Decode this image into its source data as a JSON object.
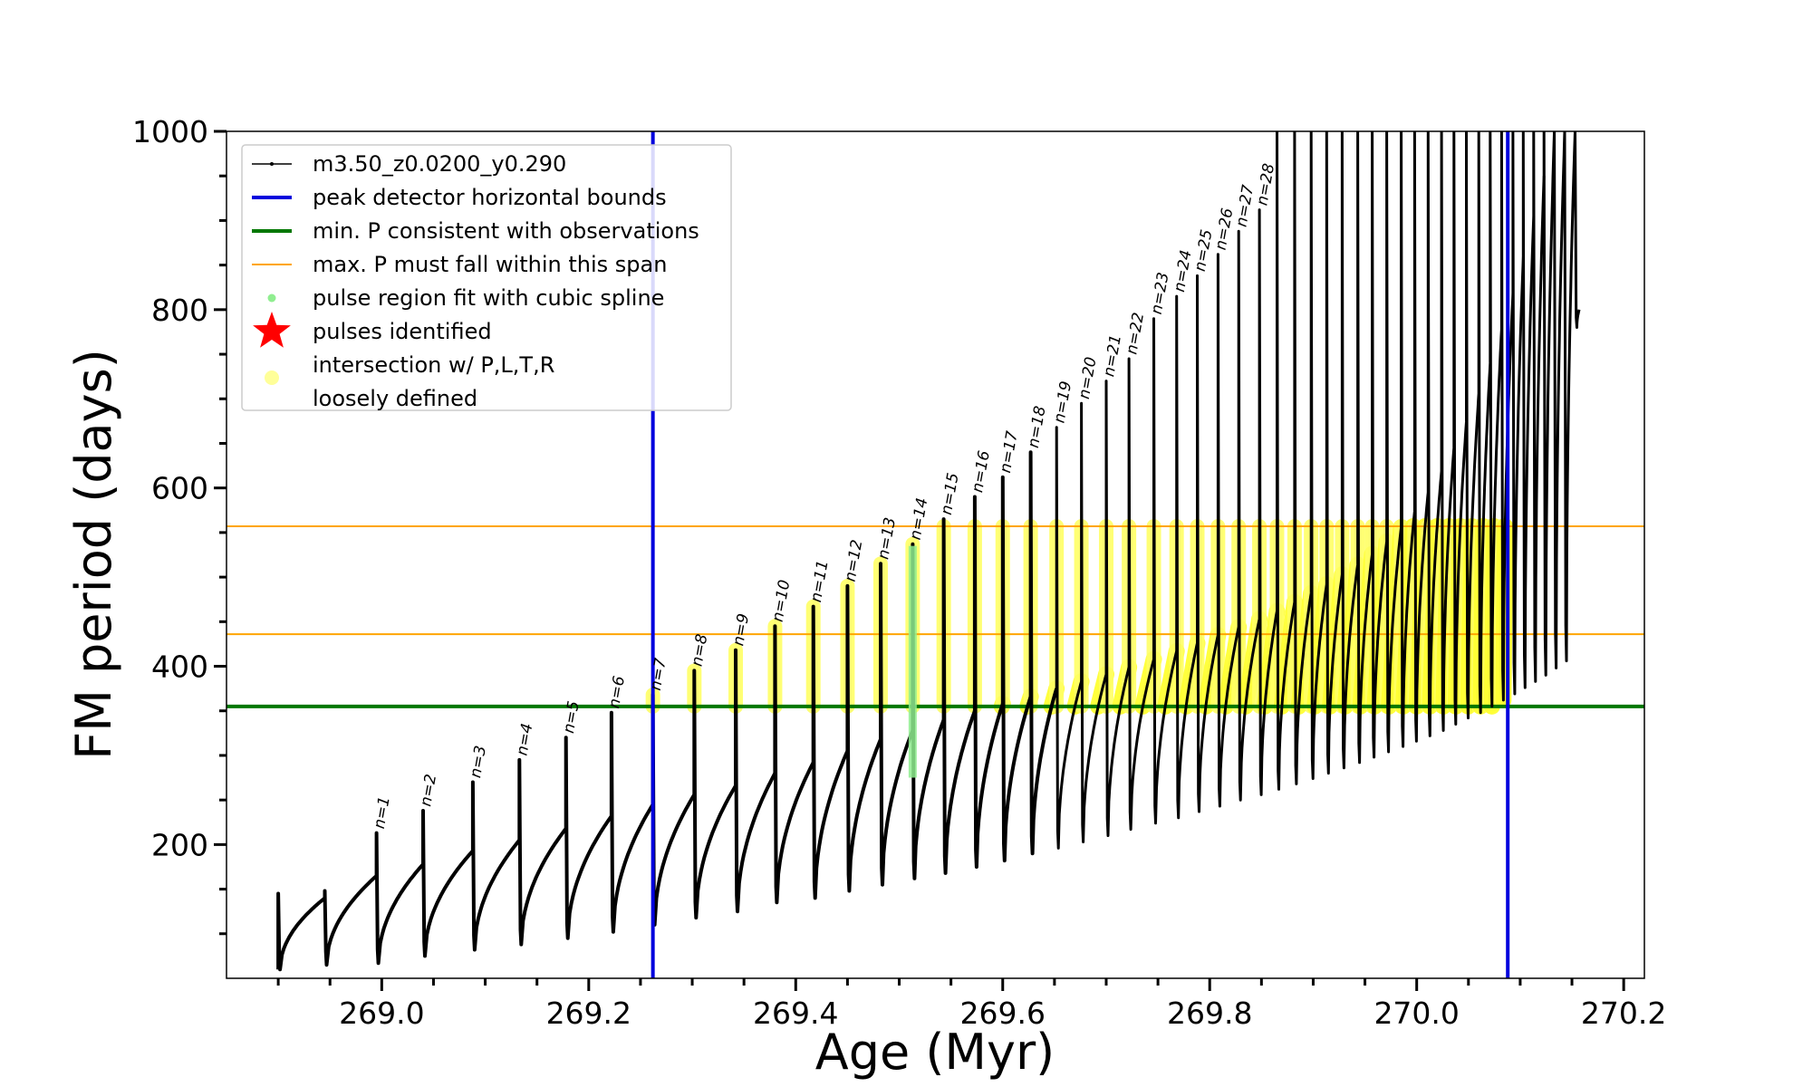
{
  "chart_data": {
    "type": "line",
    "title": "",
    "xlabel": "Age (Myr)",
    "ylabel": "FM period (days)",
    "xlim": [
      268.85,
      270.22
    ],
    "ylim": [
      50,
      1000
    ],
    "xticks": [
      269.0,
      269.2,
      269.4,
      269.6,
      269.8,
      270.0,
      270.2
    ],
    "xtick_labels": [
      "269.0",
      "269.2",
      "269.4",
      "269.6",
      "269.8",
      "270.0",
      "270.2"
    ],
    "yticks": [
      200,
      400,
      600,
      800,
      1000
    ],
    "ytick_labels": [
      "200",
      "400",
      "600",
      "800",
      "1000"
    ],
    "grid": false,
    "legend_position": "top-left",
    "legend": [
      {
        "label": "m3.50_z0.0200_y0.290",
        "style": "line-marker",
        "color": "#000000"
      },
      {
        "label": "peak detector horizontal bounds",
        "style": "line",
        "color": "#0000dd"
      },
      {
        "label": "min. P consistent with observations",
        "style": "line",
        "color": "#007700"
      },
      {
        "label": "max. P must fall within this span",
        "style": "thin-line",
        "color": "#ffa500"
      },
      {
        "label": "pulse region fit with cubic spline",
        "style": "dot",
        "color": "#90ee90"
      },
      {
        "label": "pulses identified",
        "style": "star",
        "color": "#ff0000"
      },
      {
        "label": "intersection w/ P,L,T,R",
        "label2": "loosely defined",
        "style": "dot",
        "color": "#ffff99"
      }
    ],
    "vertical_lines": [
      {
        "x": 269.262,
        "color": "#0000dd"
      },
      {
        "x": 270.088,
        "color": "#0000dd"
      }
    ],
    "horizontal_lines": [
      {
        "y": 355,
        "color": "#007700"
      },
      {
        "y": 436,
        "color": "#ffa500"
      },
      {
        "y": 557,
        "color": "#ffa500"
      }
    ],
    "pulses": [
      {
        "label": "n=1",
        "x": 268.995,
        "peak": 213,
        "base": 67,
        "prev": 165
      },
      {
        "label": "n=2",
        "x": 269.04,
        "peak": 238,
        "base": 75,
        "prev": 178
      },
      {
        "label": "n=3",
        "x": 269.088,
        "peak": 270,
        "base": 82,
        "prev": 193
      },
      {
        "label": "n=4",
        "x": 269.133,
        "peak": 295,
        "base": 88,
        "prev": 205
      },
      {
        "label": "n=5",
        "x": 269.178,
        "peak": 320,
        "base": 95,
        "prev": 218
      },
      {
        "label": "n=6",
        "x": 269.222,
        "peak": 348,
        "base": 102,
        "prev": 232
      },
      {
        "label": "n=7",
        "x": 269.262,
        "peak": 368,
        "base": 110,
        "prev": 245
      },
      {
        "label": "n=8",
        "x": 269.302,
        "peak": 395,
        "base": 118,
        "prev": 256
      },
      {
        "label": "n=9",
        "x": 269.342,
        "peak": 418,
        "base": 125,
        "prev": 266
      },
      {
        "label": "n=10",
        "x": 269.38,
        "peak": 445,
        "base": 135,
        "prev": 280
      },
      {
        "label": "n=11",
        "x": 269.417,
        "peak": 467,
        "base": 140,
        "prev": 292
      },
      {
        "label": "n=12",
        "x": 269.45,
        "peak": 490,
        "base": 148,
        "prev": 305
      },
      {
        "label": "n=13",
        "x": 269.482,
        "peak": 515,
        "base": 155,
        "prev": 318
      },
      {
        "label": "n=14",
        "x": 269.513,
        "peak": 537,
        "base": 162,
        "prev": 328
      },
      {
        "label": "n=15",
        "x": 269.543,
        "peak": 565,
        "base": 168,
        "prev": 340
      },
      {
        "label": "n=16",
        "x": 269.573,
        "peak": 590,
        "base": 175,
        "prev": 350
      },
      {
        "label": "n=17",
        "x": 269.6,
        "peak": 612,
        "base": 182,
        "prev": 358
      },
      {
        "label": "n=18",
        "x": 269.627,
        "peak": 640,
        "base": 190,
        "prev": 366
      },
      {
        "label": "n=19",
        "x": 269.652,
        "peak": 668,
        "base": 196,
        "prev": 375
      },
      {
        "label": "n=20",
        "x": 269.676,
        "peak": 695,
        "base": 203,
        "prev": 383
      },
      {
        "label": "n=21",
        "x": 269.7,
        "peak": 720,
        "base": 210,
        "prev": 391
      },
      {
        "label": "n=22",
        "x": 269.722,
        "peak": 745,
        "base": 217,
        "prev": 399
      },
      {
        "label": "n=23",
        "x": 269.746,
        "peak": 790,
        "base": 224,
        "prev": 408
      },
      {
        "label": "n=24",
        "x": 269.768,
        "peak": 815,
        "base": 230,
        "prev": 417
      },
      {
        "label": "n=25",
        "x": 269.788,
        "peak": 838,
        "base": 237,
        "prev": 426
      },
      {
        "label": "n=26",
        "x": 269.808,
        "peak": 862,
        "base": 243,
        "prev": 435
      },
      {
        "label": "n=27",
        "x": 269.828,
        "peak": 888,
        "base": 250,
        "prev": 444
      },
      {
        "label": "n=28",
        "x": 269.848,
        "peak": 912,
        "base": 256,
        "prev": 453
      },
      {
        "label": "",
        "x": 269.865,
        "peak": 1000,
        "base": 262,
        "prev": 462
      },
      {
        "label": "",
        "x": 269.882,
        "peak": 1000,
        "base": 268,
        "prev": 472
      },
      {
        "label": "",
        "x": 269.898,
        "peak": 1000,
        "base": 274,
        "prev": 482
      },
      {
        "label": "",
        "x": 269.913,
        "peak": 1000,
        "base": 280,
        "prev": 492
      },
      {
        "label": "",
        "x": 269.928,
        "peak": 1000,
        "base": 286,
        "prev": 503
      },
      {
        "label": "",
        "x": 269.943,
        "peak": 1000,
        "base": 292,
        "prev": 514
      },
      {
        "label": "",
        "x": 269.957,
        "peak": 1000,
        "base": 298,
        "prev": 526
      },
      {
        "label": "",
        "x": 269.971,
        "peak": 1000,
        "base": 304,
        "prev": 540
      },
      {
        "label": "",
        "x": 269.985,
        "peak": 1000,
        "base": 310,
        "prev": 556
      },
      {
        "label": "",
        "x": 269.998,
        "peak": 1000,
        "base": 316,
        "prev": 574
      },
      {
        "label": "",
        "x": 270.011,
        "peak": 1000,
        "base": 322,
        "prev": 595
      },
      {
        "label": "",
        "x": 270.024,
        "peak": 1000,
        "base": 328,
        "prev": 619
      },
      {
        "label": "",
        "x": 270.036,
        "peak": 1000,
        "base": 335,
        "prev": 645
      },
      {
        "label": "",
        "x": 270.048,
        "peak": 1000,
        "base": 342,
        "prev": 674
      },
      {
        "label": "",
        "x": 270.06,
        "peak": 1000,
        "base": 348,
        "prev": 706
      },
      {
        "label": "",
        "x": 270.071,
        "peak": 1000,
        "base": 355,
        "prev": 740
      },
      {
        "label": "",
        "x": 270.082,
        "peak": 1000,
        "base": 362,
        "prev": 778
      },
      {
        "label": "",
        "x": 270.093,
        "peak": 1000,
        "base": 369,
        "prev": 818
      },
      {
        "label": "",
        "x": 270.103,
        "peak": 1000,
        "base": 376,
        "prev": 860
      },
      {
        "label": "",
        "x": 270.113,
        "peak": 1000,
        "base": 383,
        "prev": 905
      },
      {
        "label": "",
        "x": 270.123,
        "peak": 1000,
        "base": 390,
        "prev": 950
      },
      {
        "label": "",
        "x": 270.133,
        "peak": 1000,
        "base": 398,
        "prev": 1000
      },
      {
        "label": "",
        "x": 270.143,
        "peak": 1000,
        "base": 406,
        "prev": 1000
      },
      {
        "label": "",
        "x": 270.153,
        "peak": 1000,
        "base": 780,
        "prev": 1000
      }
    ]
  }
}
